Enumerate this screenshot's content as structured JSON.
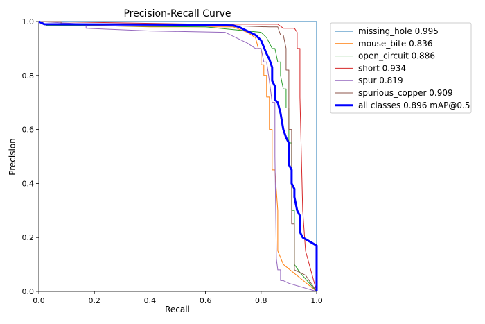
{
  "chart_data": {
    "type": "line",
    "title": "Precision-Recall Curve",
    "xlabel": "Recall",
    "ylabel": "Precision",
    "xlim": [
      0,
      1
    ],
    "ylim": [
      0,
      1
    ],
    "xticks": [
      0.0,
      0.2,
      0.4,
      0.6,
      0.8,
      1.0
    ],
    "yticks": [
      0.0,
      0.2,
      0.4,
      0.6,
      0.8,
      1.0
    ],
    "xtick_labels": [
      "0.0",
      "0.2",
      "0.4",
      "0.6",
      "0.8",
      "1.0"
    ],
    "ytick_labels": [
      "0.0",
      "0.2",
      "0.4",
      "0.6",
      "0.8",
      "1.0"
    ],
    "grid": false,
    "legend_position": "outside-right",
    "series": [
      {
        "name": "missing_hole 0.995",
        "color": "#1f77b4",
        "width": 1,
        "x": [
          0.0,
          0.9,
          0.98,
          0.99,
          1.0,
          1.0
        ],
        "y": [
          1.0,
          1.0,
          1.0,
          1.0,
          1.0,
          0.0
        ]
      },
      {
        "name": "mouse_bite 0.836",
        "color": "#ff7f0e",
        "width": 1,
        "x": [
          0.0,
          0.02,
          0.4,
          0.7,
          0.75,
          0.78,
          0.79,
          0.8,
          0.8,
          0.81,
          0.81,
          0.82,
          0.82,
          0.83,
          0.83,
          0.84,
          0.84,
          0.85,
          0.86,
          0.86,
          0.88,
          1.0
        ],
        "y": [
          1.0,
          0.99,
          0.98,
          0.98,
          0.96,
          0.94,
          0.9,
          0.9,
          0.84,
          0.84,
          0.8,
          0.8,
          0.72,
          0.72,
          0.6,
          0.6,
          0.45,
          0.45,
          0.3,
          0.15,
          0.1,
          0.0
        ]
      },
      {
        "name": "open_circuit 0.886",
        "color": "#2ca02c",
        "width": 1,
        "x": [
          0.0,
          0.03,
          0.08,
          0.6,
          0.8,
          0.82,
          0.84,
          0.85,
          0.86,
          0.87,
          0.87,
          0.88,
          0.89,
          0.89,
          0.9,
          0.9,
          0.91,
          0.91,
          0.92,
          0.92,
          0.94,
          1.0
        ],
        "y": [
          1.0,
          0.985,
          0.985,
          0.98,
          0.96,
          0.94,
          0.9,
          0.9,
          0.85,
          0.85,
          0.8,
          0.75,
          0.75,
          0.68,
          0.68,
          0.55,
          0.55,
          0.3,
          0.3,
          0.1,
          0.07,
          0.0
        ]
      },
      {
        "name": "short 0.934",
        "color": "#d62728",
        "width": 1,
        "x": [
          0.0,
          0.6,
          0.86,
          0.88,
          0.9,
          0.92,
          0.93,
          0.93,
          0.94,
          0.94,
          0.95,
          0.96,
          1.0
        ],
        "y": [
          1.0,
          0.99,
          0.99,
          0.975,
          0.975,
          0.975,
          0.96,
          0.9,
          0.9,
          0.72,
          0.3,
          0.15,
          0.0
        ]
      },
      {
        "name": "spur 0.819",
        "color": "#9467bd",
        "width": 1,
        "x": [
          0.0,
          0.17,
          0.17,
          0.4,
          0.67,
          0.75,
          0.78,
          0.8,
          0.81,
          0.82,
          0.83,
          0.84,
          0.85,
          0.85,
          0.855,
          0.86,
          0.87,
          0.87,
          0.88,
          0.9,
          1.0
        ],
        "y": [
          1.0,
          0.99,
          0.975,
          0.965,
          0.96,
          0.92,
          0.9,
          0.9,
          0.85,
          0.85,
          0.78,
          0.7,
          0.7,
          0.5,
          0.12,
          0.08,
          0.08,
          0.04,
          0.04,
          0.03,
          0.0
        ]
      },
      {
        "name": "spurious_copper 0.909",
        "color": "#8c564b",
        "width": 1,
        "x": [
          0.0,
          0.08,
          0.08,
          0.55,
          0.83,
          0.86,
          0.87,
          0.88,
          0.89,
          0.89,
          0.9,
          0.9,
          0.91,
          0.91,
          0.92,
          0.92,
          0.96,
          1.0
        ],
        "y": [
          1.0,
          1.0,
          0.99,
          0.99,
          0.98,
          0.98,
          0.95,
          0.95,
          0.9,
          0.82,
          0.82,
          0.6,
          0.6,
          0.25,
          0.25,
          0.08,
          0.06,
          0.0
        ]
      },
      {
        "name": "all classes 0.896 mAP@0.5",
        "color": "#0000ff",
        "width": 3,
        "x": [
          0.0,
          0.02,
          0.6,
          0.7,
          0.72,
          0.74,
          0.76,
          0.78,
          0.8,
          0.82,
          0.83,
          0.84,
          0.84,
          0.85,
          0.85,
          0.86,
          0.87,
          0.88,
          0.89,
          0.9,
          0.9,
          0.91,
          0.91,
          0.92,
          0.92,
          0.93,
          0.94,
          0.94,
          0.95,
          1.0,
          1.0
        ],
        "y": [
          1.0,
          0.99,
          0.988,
          0.985,
          0.98,
          0.97,
          0.96,
          0.95,
          0.93,
          0.88,
          0.86,
          0.83,
          0.78,
          0.76,
          0.71,
          0.7,
          0.66,
          0.6,
          0.57,
          0.55,
          0.47,
          0.45,
          0.4,
          0.38,
          0.35,
          0.3,
          0.28,
          0.22,
          0.2,
          0.17,
          0.0
        ]
      }
    ]
  }
}
